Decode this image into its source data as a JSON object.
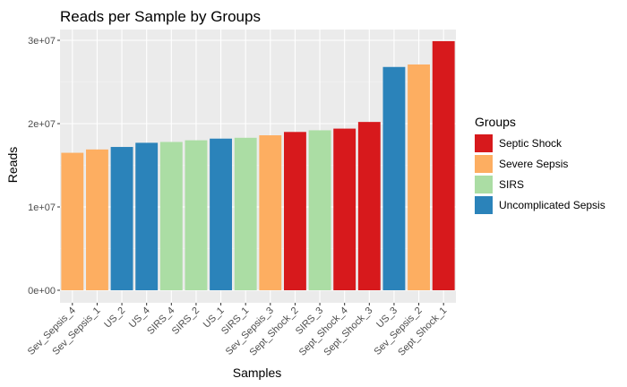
{
  "chart_data": {
    "type": "bar",
    "title": "Reads per Sample by Groups",
    "xlabel": "Samples",
    "ylabel": "Reads",
    "ylim": [
      0,
      31000000
    ],
    "yticks": [
      0,
      10000000,
      20000000,
      30000000
    ],
    "ytick_labels": [
      "0e+00",
      "1e+07",
      "2e+07",
      "3e+07"
    ],
    "grid": true,
    "legend_position": "right",
    "legend_title": "Groups",
    "groups": [
      {
        "name": "Septic Shock",
        "color": "#d7191c"
      },
      {
        "name": "Severe Sepsis",
        "color": "#fdae61"
      },
      {
        "name": "SIRS",
        "color": "#abdda4"
      },
      {
        "name": "Uncomplicated Sepsis",
        "color": "#2b83ba"
      }
    ],
    "categories": [
      "Sev_Sepsis_4",
      "Sev_Sepsis_1",
      "US_2",
      "US_4",
      "SIRS_4",
      "SIRS_2",
      "US_1",
      "SIRS_1",
      "Sev_Sepsis_3",
      "Sept_Shock_2",
      "SIRS_3",
      "Sept_Shock_4",
      "Sept_Shock_3",
      "US_3",
      "Sev_Sepsis_2",
      "Sept_Shock_1"
    ],
    "values": [
      16500000,
      16900000,
      17200000,
      17700000,
      17800000,
      18000000,
      18200000,
      18300000,
      18600000,
      19000000,
      19200000,
      19400000,
      20200000,
      26800000,
      27100000,
      29900000
    ],
    "bar_groups": [
      "Severe Sepsis",
      "Severe Sepsis",
      "Uncomplicated Sepsis",
      "Uncomplicated Sepsis",
      "SIRS",
      "SIRS",
      "Uncomplicated Sepsis",
      "SIRS",
      "Severe Sepsis",
      "Septic Shock",
      "SIRS",
      "Septic Shock",
      "Septic Shock",
      "Uncomplicated Sepsis",
      "Severe Sepsis",
      "Septic Shock"
    ]
  }
}
